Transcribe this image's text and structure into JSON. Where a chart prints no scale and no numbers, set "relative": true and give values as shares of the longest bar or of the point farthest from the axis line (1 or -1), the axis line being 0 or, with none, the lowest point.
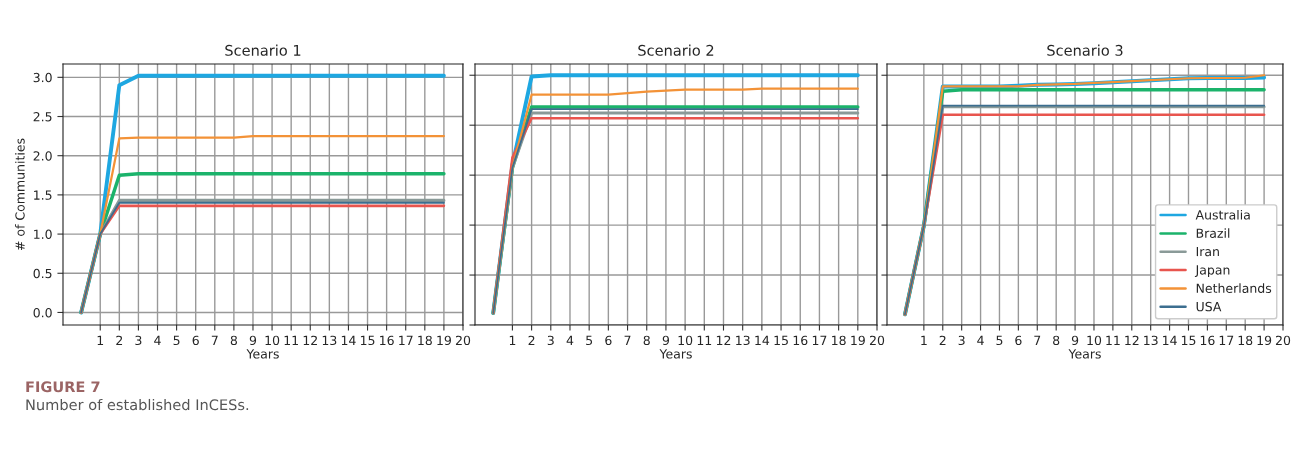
{
  "chart_data": [
    {
      "type": "line",
      "title": "Scenario 1",
      "xlabel": "Years",
      "ylabel": "# of Communities",
      "x": [
        0,
        1,
        2,
        3,
        4,
        5,
        6,
        7,
        8,
        9,
        10,
        11,
        12,
        13,
        14,
        15,
        16,
        17,
        18,
        19
      ],
      "xlim": [
        -0.95,
        20
      ],
      "xticks": [
        1,
        2,
        3,
        4,
        5,
        6,
        7,
        8,
        9,
        10,
        11,
        12,
        13,
        14,
        15,
        16,
        17,
        18,
        19,
        20
      ],
      "ylim": [
        -0.16,
        3.17
      ],
      "yticks": [
        {
          "value": 0,
          "label": "0.0"
        },
        {
          "value": 0.5,
          "label": "0.5"
        },
        {
          "value": 1,
          "label": "1.0"
        },
        {
          "value": 1.5,
          "label": "1.5"
        },
        {
          "value": 2,
          "label": "2.0"
        },
        {
          "value": 2.5,
          "label": "2.5"
        },
        {
          "value": 3,
          "label": "3.0"
        }
      ],
      "grid": true,
      "legend": false,
      "series": [
        {
          "color": "#1ea7e1",
          "values": [
            0,
            1,
            2.9,
            3.02,
            3.02,
            3.02,
            3.02,
            3.02,
            3.02,
            3.02,
            3.02,
            3.02,
            3.02,
            3.02,
            3.02,
            3.02,
            3.02,
            3.02,
            3.02,
            3.02
          ]
        },
        {
          "color": "#1bb36b",
          "values": [
            0,
            1,
            1.75,
            1.77,
            1.77,
            1.77,
            1.77,
            1.77,
            1.77,
            1.77,
            1.77,
            1.77,
            1.77,
            1.77,
            1.77,
            1.77,
            1.77,
            1.77,
            1.77,
            1.77
          ]
        },
        {
          "color": "#8a9a98",
          "values": [
            0,
            1,
            1.43,
            1.43,
            1.43,
            1.43,
            1.43,
            1.43,
            1.43,
            1.43,
            1.43,
            1.43,
            1.43,
            1.43,
            1.43,
            1.43,
            1.43,
            1.43,
            1.43,
            1.43
          ]
        },
        {
          "color": "#e8554e",
          "values": [
            0,
            1,
            1.36,
            1.36,
            1.36,
            1.36,
            1.36,
            1.36,
            1.36,
            1.36,
            1.36,
            1.36,
            1.36,
            1.36,
            1.36,
            1.36,
            1.36,
            1.36,
            1.36,
            1.36
          ]
        },
        {
          "color": "#f39237",
          "values": [
            0,
            1,
            2.22,
            2.23,
            2.23,
            2.23,
            2.23,
            2.23,
            2.23,
            2.25,
            2.25,
            2.25,
            2.25,
            2.25,
            2.25,
            2.25,
            2.25,
            2.25,
            2.25,
            2.25
          ]
        },
        {
          "color": "#3c6e8f",
          "values": [
            0,
            1,
            1.4,
            1.4,
            1.4,
            1.4,
            1.4,
            1.4,
            1.4,
            1.4,
            1.4,
            1.4,
            1.4,
            1.4,
            1.4,
            1.4,
            1.4,
            1.4,
            1.4,
            1.4
          ]
        }
      ]
    },
    {
      "type": "line",
      "title": "Scenario 2",
      "xlabel": "Years",
      "relative": true,
      "tick_labels": "x",
      "x": [
        0,
        1,
        2,
        3,
        4,
        5,
        6,
        7,
        8,
        9,
        10,
        11,
        12,
        13,
        14,
        15,
        16,
        17,
        18,
        19
      ],
      "xlim": [
        -0.95,
        20
      ],
      "xticks": [
        1,
        2,
        3,
        4,
        5,
        6,
        7,
        8,
        9,
        10,
        11,
        12,
        13,
        14,
        15,
        16,
        17,
        18,
        19,
        20
      ],
      "grid": true,
      "legend": false,
      "series": [
        {
          "color": "#1ea7e1",
          "values": [
            0.048,
            0.64,
            0.995,
            1,
            1,
            1,
            1,
            1,
            1,
            1,
            1,
            1,
            1,
            1,
            1,
            1,
            1,
            1,
            1,
            1
          ]
        },
        {
          "color": "#1bb36b",
          "values": [
            0.048,
            0.63,
            0.873,
            0.873,
            0.873,
            0.873,
            0.873,
            0.873,
            0.873,
            0.873,
            0.873,
            0.873,
            0.873,
            0.873,
            0.873,
            0.873,
            0.873,
            0.873,
            0.873,
            0.873
          ]
        },
        {
          "color": "#8a9a98",
          "values": [
            0.048,
            0.63,
            0.849,
            0.849,
            0.849,
            0.849,
            0.849,
            0.849,
            0.849,
            0.849,
            0.849,
            0.849,
            0.849,
            0.849,
            0.849,
            0.849,
            0.849,
            0.849,
            0.849,
            0.849
          ]
        },
        {
          "color": "#e8554e",
          "values": [
            0.048,
            0.67,
            0.828,
            0.828,
            0.828,
            0.828,
            0.828,
            0.828,
            0.828,
            0.828,
            0.828,
            0.828,
            0.828,
            0.828,
            0.828,
            0.828,
            0.828,
            0.828,
            0.828,
            0.828
          ]
        },
        {
          "color": "#f39237",
          "values": [
            0.048,
            0.63,
            0.922,
            0.922,
            0.922,
            0.922,
            0.922,
            0.928,
            0.934,
            0.938,
            0.942,
            0.942,
            0.942,
            0.942,
            0.946,
            0.946,
            0.946,
            0.946,
            0.946,
            0.946
          ]
        },
        {
          "color": "#3c6e8f",
          "values": [
            0.048,
            0.63,
            0.864,
            0.864,
            0.864,
            0.864,
            0.864,
            0.864,
            0.864,
            0.864,
            0.864,
            0.864,
            0.864,
            0.864,
            0.864,
            0.864,
            0.864,
            0.864,
            0.864,
            0.864
          ]
        }
      ]
    },
    {
      "type": "line",
      "title": "Scenario 3",
      "xlabel": "Years",
      "relative": true,
      "tick_labels": "x",
      "x": [
        0,
        1,
        2,
        3,
        4,
        5,
        6,
        7,
        8,
        9,
        10,
        11,
        12,
        13,
        14,
        15,
        16,
        17,
        18,
        19
      ],
      "xlim": [
        -0.95,
        20
      ],
      "xticks": [
        1,
        2,
        3,
        4,
        5,
        6,
        7,
        8,
        9,
        10,
        11,
        12,
        13,
        14,
        15,
        16,
        17,
        18,
        19,
        20
      ],
      "grid": true,
      "legend": "bottom right",
      "series": [
        {
          "name": "Australia",
          "color": "#1ea7e1",
          "values": [
            0.0425,
            0.397,
            0.955,
            0.955,
            0.955,
            0.955,
            0.958,
            0.962,
            0.963,
            0.965,
            0.968,
            0.972,
            0.976,
            0.98,
            0.984,
            0.988,
            0.989,
            0.989,
            0.989,
            0.991
          ]
        },
        {
          "name": "Brazil",
          "color": "#1bb36b",
          "values": [
            0.0425,
            0.397,
            0.936,
            0.942,
            0.942,
            0.942,
            0.942,
            0.942,
            0.942,
            0.942,
            0.942,
            0.942,
            0.942,
            0.942,
            0.942,
            0.942,
            0.942,
            0.942,
            0.942,
            0.942
          ]
        },
        {
          "name": "Iran",
          "color": "#8a9a98",
          "values": [
            0.0425,
            0.397,
            0.874,
            0.874,
            0.874,
            0.874,
            0.874,
            0.874,
            0.874,
            0.874,
            0.874,
            0.874,
            0.874,
            0.874,
            0.874,
            0.874,
            0.874,
            0.874,
            0.874,
            0.874
          ]
        },
        {
          "name": "Japan",
          "color": "#e8554e",
          "values": [
            0.0425,
            0.397,
            0.842,
            0.842,
            0.842,
            0.842,
            0.842,
            0.842,
            0.842,
            0.842,
            0.842,
            0.842,
            0.842,
            0.842,
            0.842,
            0.842,
            0.842,
            0.842,
            0.842,
            0.842
          ]
        },
        {
          "name": "Netherlands",
          "color": "#f39237",
          "values": [
            0.0425,
            0.397,
            0.955,
            0.955,
            0.955,
            0.955,
            0.955,
            0.961,
            0.963,
            0.965,
            0.969,
            0.972,
            0.976,
            0.98,
            0.984,
            0.988,
            0.989,
            0.989,
            0.99,
            1
          ]
        },
        {
          "name": "USA",
          "color": "#3c6e8f",
          "values": [
            0.0425,
            0.397,
            0.878,
            0.878,
            0.878,
            0.878,
            0.878,
            0.878,
            0.878,
            0.878,
            0.878,
            0.878,
            0.878,
            0.878,
            0.878,
            0.878,
            0.878,
            0.878,
            0.878,
            0.878
          ]
        }
      ],
      "annotations": [
        "FIGURE 7",
        "Number of established InCESs."
      ]
    }
  ]
}
